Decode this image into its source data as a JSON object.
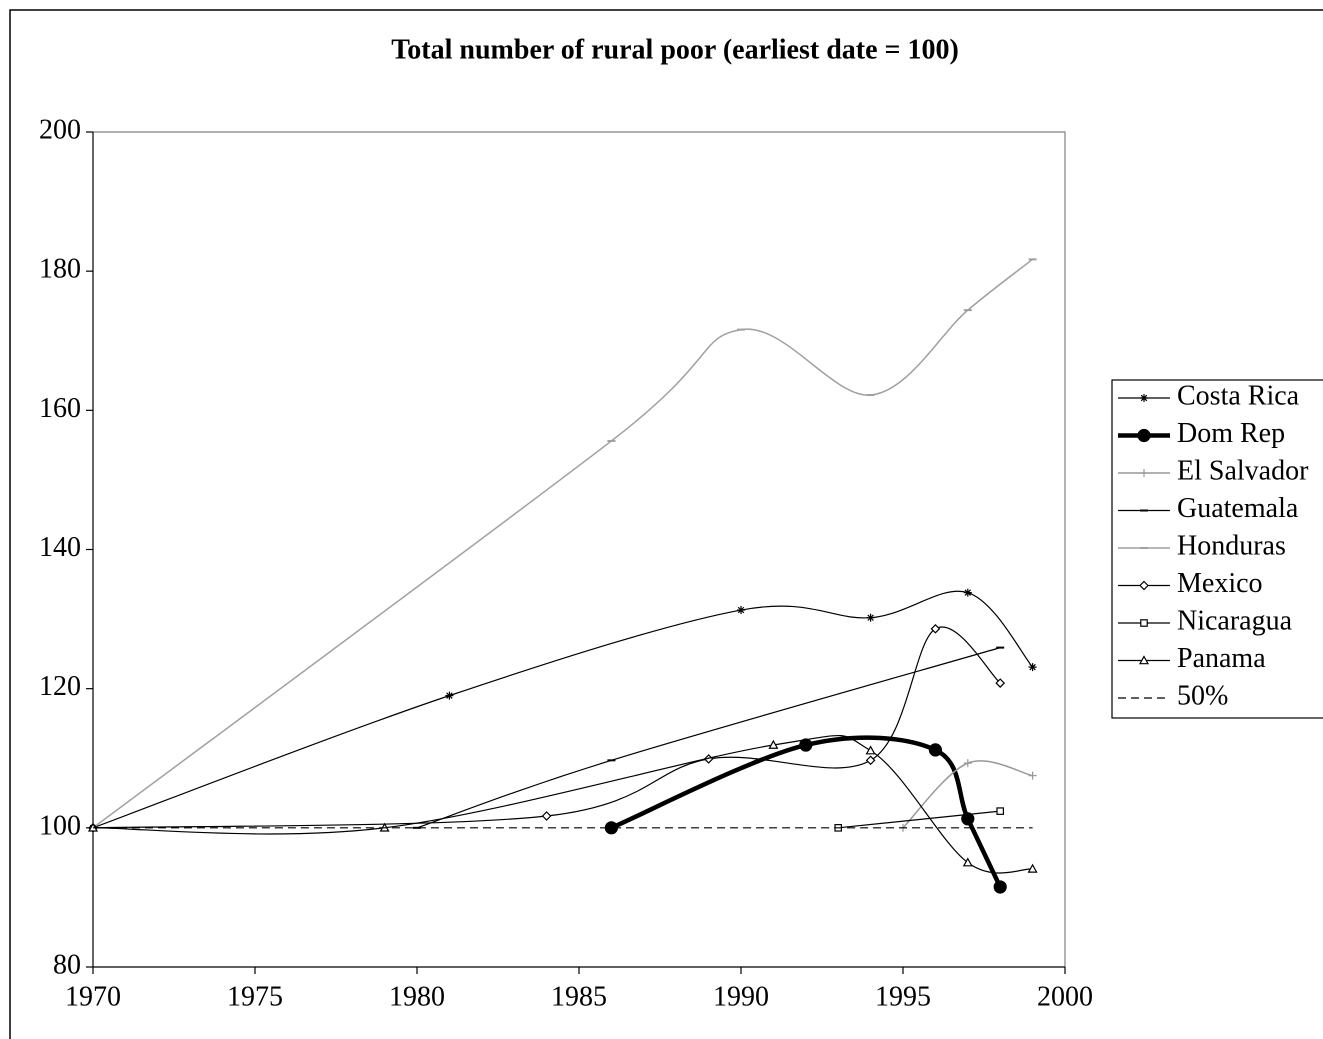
{
  "chart_data": {
    "type": "line",
    "title": "Total number of rural poor (earliest date = 100)",
    "xlim": [
      1970,
      2000
    ],
    "xticks": [
      1970,
      1975,
      1980,
      1985,
      1990,
      1995,
      2000
    ],
    "ylim": [
      80,
      200
    ],
    "yticks": [
      80,
      100,
      120,
      140,
      160,
      180,
      200
    ],
    "legend": "right",
    "series": [
      {
        "name": "Costa Rica",
        "color": "#000000",
        "marker": "star",
        "line_width": 1.2,
        "x": [
          1970,
          1981,
          1990,
          1994,
          1997,
          1999
        ],
        "values": [
          100,
          119,
          131.3,
          130.2,
          133.8,
          123.1
        ]
      },
      {
        "name": "Dom Rep",
        "color": "#000000",
        "marker": "circle",
        "line_width": 4.5,
        "x": [
          1986,
          1992,
          1996,
          1997,
          1998
        ],
        "values": [
          100,
          111.9,
          111.2,
          101.3,
          91.5
        ]
      },
      {
        "name": "El Salvador",
        "color": "#999999",
        "marker": "plus",
        "line_width": 1.5,
        "x": [
          1995,
          1997,
          1999
        ],
        "values": [
          100,
          109.3,
          107.5
        ]
      },
      {
        "name": "Guatemala",
        "color": "#000000",
        "marker": "dash",
        "line_width": 1.2,
        "x": [
          1980,
          1986,
          1998
        ],
        "values": [
          100,
          109.7,
          125.9
        ]
      },
      {
        "name": "Honduras",
        "color": "#a0a0a0",
        "marker": "dash",
        "line_width": 1.5,
        "x": [
          1970,
          1986,
          1990,
          1994,
          1997,
          1999
        ],
        "values": [
          100,
          155.6,
          171.6,
          162.2,
          174.4,
          181.7
        ]
      },
      {
        "name": "Mexico",
        "color": "#000000",
        "marker": "diamond",
        "line_width": 1.2,
        "x": [
          1970,
          1984,
          1989,
          1994,
          1996,
          1998
        ],
        "values": [
          100,
          101.7,
          109.9,
          109.7,
          128.6,
          120.8
        ]
      },
      {
        "name": "Nicaragua",
        "color": "#000000",
        "marker": "square",
        "line_width": 1.2,
        "x": [
          1993,
          1998
        ],
        "values": [
          100,
          102.4
        ]
      },
      {
        "name": "Panama",
        "color": "#000000",
        "marker": "triangle",
        "line_width": 1.2,
        "x": [
          1970,
          1979,
          1991,
          1994,
          1997,
          1999
        ],
        "values": [
          100,
          100,
          111.9,
          111.1,
          95,
          94.1
        ]
      },
      {
        "name": "50%",
        "color": "#000000",
        "marker": "none",
        "dashed": true,
        "line_width": 1.2,
        "x": [
          1970,
          1999
        ],
        "values": [
          100,
          100
        ]
      }
    ]
  }
}
